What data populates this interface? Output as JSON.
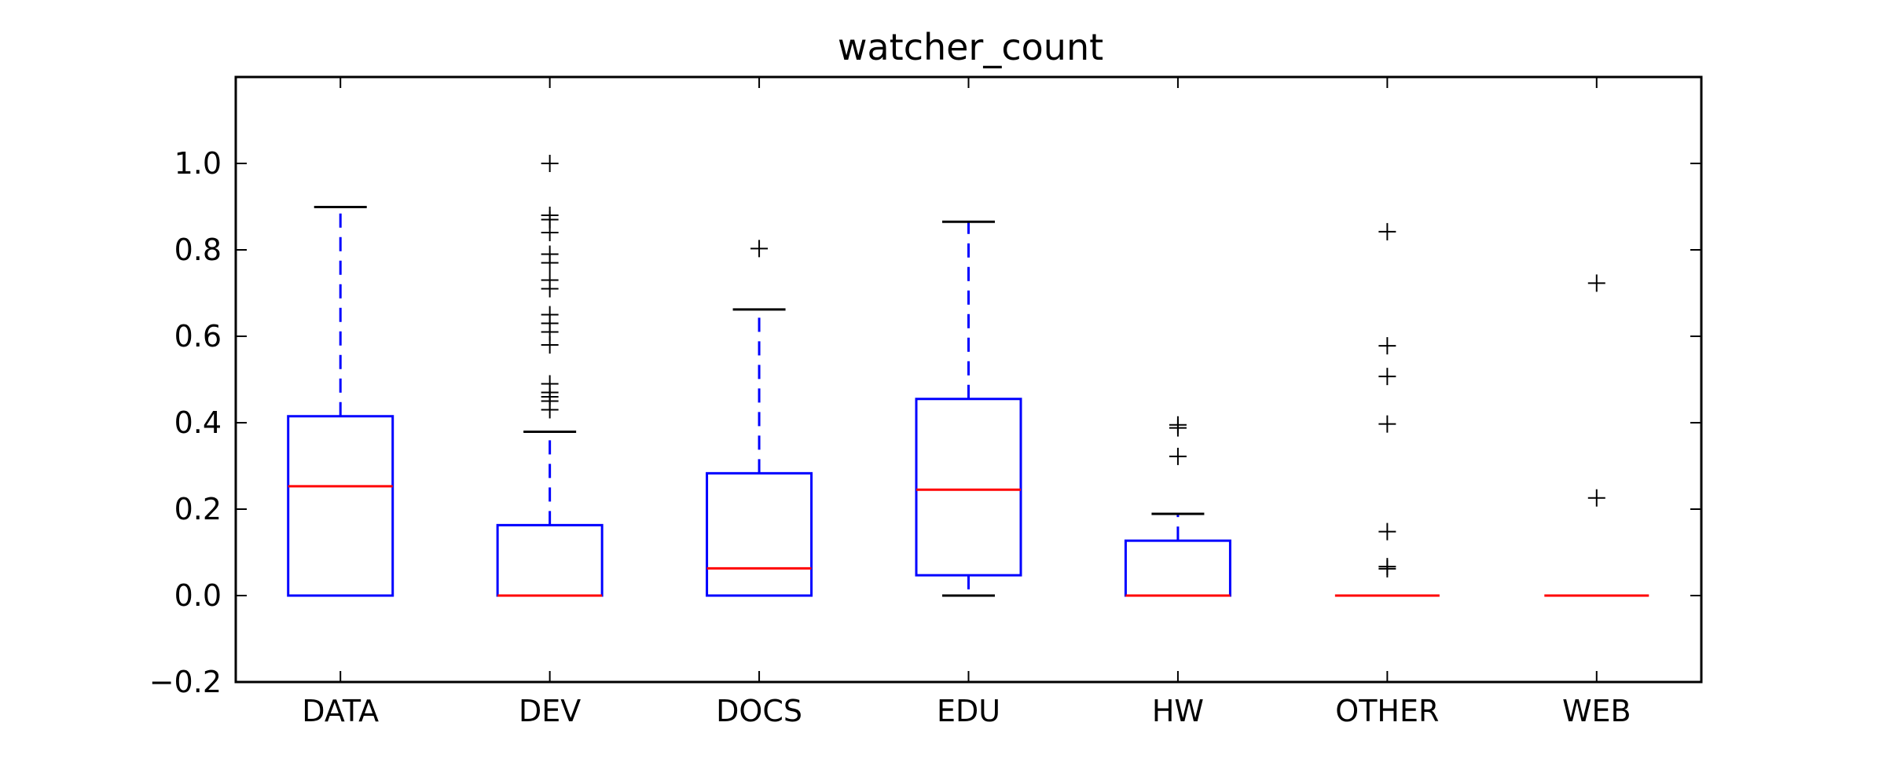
{
  "chart_data": {
    "type": "box",
    "title": "watcher_count",
    "xlabel": "",
    "ylabel": "",
    "ylim": [
      -0.2,
      1.2
    ],
    "yticks": [
      -0.2,
      0.0,
      0.2,
      0.4,
      0.6,
      0.8,
      1.0
    ],
    "ytick_labels": [
      "−0.2",
      "0.0",
      "0.2",
      "0.4",
      "0.6",
      "0.8",
      "1.0"
    ],
    "grid": false,
    "categories": [
      "DATA",
      "DEV",
      "DOCS",
      "EDU",
      "HW",
      "OTHER",
      "WEB"
    ],
    "boxes": [
      {
        "category": "DATA",
        "whisker_low": 0.0,
        "q1": 0.0,
        "median": 0.253,
        "q3": 0.415,
        "whisker_high": 0.899,
        "outliers": []
      },
      {
        "category": "DEV",
        "whisker_low": 0.0,
        "q1": 0.0,
        "median": 0.0,
        "q3": 0.163,
        "whisker_high": 0.379,
        "outliers": [
          1.0,
          0.88,
          0.87,
          0.84,
          0.79,
          0.77,
          0.73,
          0.71,
          0.65,
          0.63,
          0.61,
          0.58,
          0.49,
          0.47,
          0.46,
          0.45,
          0.43
        ]
      },
      {
        "category": "DOCS",
        "whisker_low": 0.0,
        "q1": 0.0,
        "median": 0.063,
        "q3": 0.283,
        "whisker_high": 0.662,
        "outliers": [
          0.803
        ]
      },
      {
        "category": "EDU",
        "whisker_low": 0.0,
        "q1": 0.047,
        "median": 0.245,
        "q3": 0.455,
        "whisker_high": 0.865,
        "outliers": []
      },
      {
        "category": "HW",
        "whisker_low": 0.0,
        "q1": 0.0,
        "median": 0.0,
        "q3": 0.127,
        "whisker_high": 0.189,
        "outliers": [
          0.395,
          0.388,
          0.322
        ]
      },
      {
        "category": "OTHER",
        "whisker_low": 0.0,
        "q1": 0.0,
        "median": 0.0,
        "q3": 0.0,
        "whisker_high": 0.0,
        "outliers": [
          0.842,
          0.578,
          0.507,
          0.397,
          0.148,
          0.067,
          0.062
        ]
      },
      {
        "category": "WEB",
        "whisker_low": 0.0,
        "q1": 0.0,
        "median": 0.0,
        "q3": 0.0,
        "whisker_high": 0.0,
        "outliers": [
          0.723,
          0.226
        ]
      }
    ],
    "colors": {
      "box": "#0000ff",
      "whisker": "#0000ff",
      "cap": "#000000",
      "median": "#ff0000",
      "flier": "#000000",
      "frame": "#000000"
    }
  }
}
